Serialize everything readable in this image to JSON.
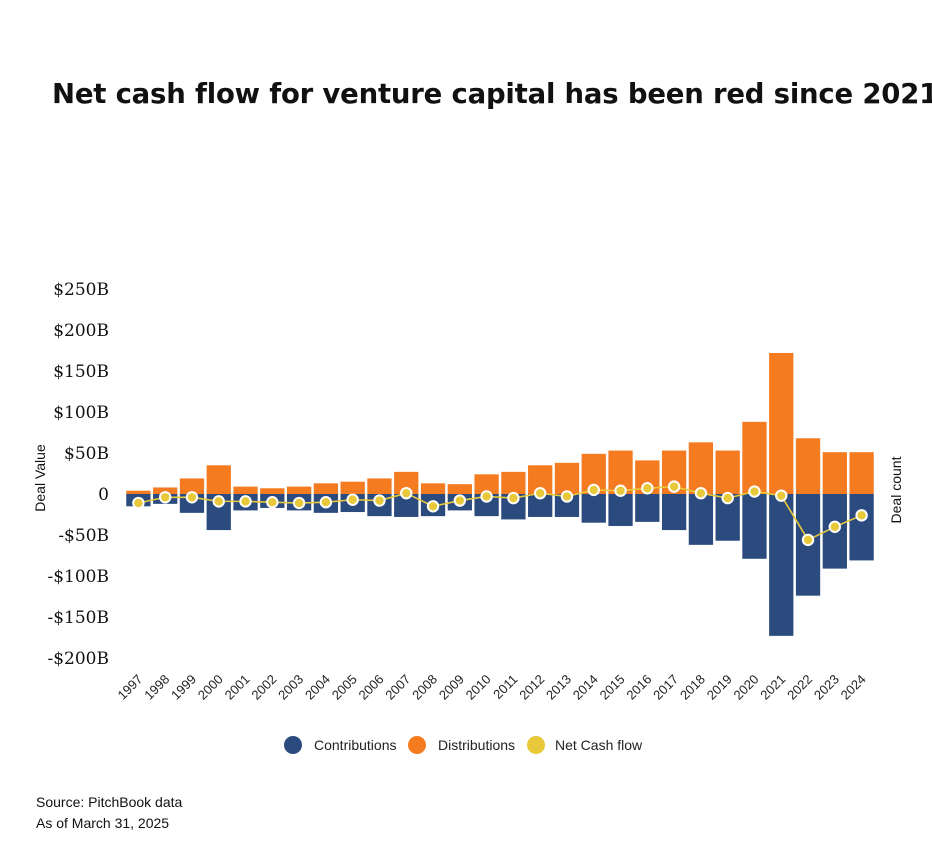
{
  "title": "Net cash flow for venture capital has been red since 2021",
  "source": {
    "line1": "Source: PitchBook data",
    "line2": "As of March 31, 2025"
  },
  "chart_data": {
    "type": "bar",
    "subtype": "stacked bar with line overlay",
    "title": "Net cash flow for venture capital has been red since 2021",
    "ylabel": "Deal Value",
    "y2label": "Deal count",
    "ylim": [
      -200,
      250
    ],
    "yticks": [
      250,
      200,
      150,
      100,
      50,
      0,
      -50,
      -100,
      -150,
      -200
    ],
    "ytick_labels": [
      "$250B",
      "$200B",
      "$150B",
      "$100B",
      "$50B",
      "0",
      "-$50B",
      "-$100B",
      "-$150B",
      "-$200B"
    ],
    "grid": false,
    "legend_position": "bottom",
    "categories": [
      "1997",
      "1998",
      "1999",
      "2000",
      "2001",
      "2002",
      "2003",
      "2004",
      "2005",
      "2006",
      "2007",
      "2008",
      "2009",
      "2010",
      "2011",
      "2012",
      "2013",
      "2014",
      "2015",
      "2016",
      "2017",
      "2018",
      "2019",
      "2020",
      "2021",
      "2022",
      "2023",
      "2024"
    ],
    "series": [
      {
        "name": "Contributions",
        "type": "bar",
        "color": "#2b4b7e",
        "values": [
          -15,
          -12,
          -23,
          -44,
          -20,
          -17,
          -20,
          -23,
          -22,
          -27,
          -28,
          -27,
          -20,
          -27,
          -31,
          -28,
          -28,
          -35,
          -39,
          -34,
          -44,
          -62,
          -57,
          -79,
          -173,
          -124,
          -91,
          -81
        ]
      },
      {
        "name": "Distributions",
        "type": "bar",
        "color": "#f47b20",
        "values": [
          4,
          8,
          19,
          35,
          9,
          7,
          9,
          13,
          15,
          19,
          27,
          13,
          12,
          24,
          27,
          35,
          38,
          49,
          53,
          41,
          53,
          63,
          53,
          88,
          172,
          68,
          51,
          51
        ]
      },
      {
        "name": "Net Cash flow",
        "type": "line",
        "color": "#e8c93a",
        "values": [
          -11,
          -4,
          -4,
          -9,
          -9,
          -10,
          -11,
          -10,
          -7,
          -8,
          1,
          -15,
          -8,
          -3,
          -5,
          1,
          -3,
          5,
          4,
          7,
          9,
          1,
          -5,
          3,
          -2,
          -56,
          -40,
          -26
        ]
      }
    ]
  }
}
